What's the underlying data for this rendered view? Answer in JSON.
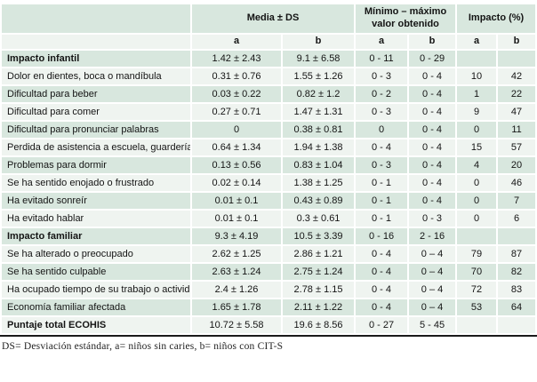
{
  "table": {
    "col_groups": [
      {
        "label": "Media ± DS"
      },
      {
        "label": "Mínimo – máximo valor obtenido"
      },
      {
        "label": "Impacto (%)"
      }
    ],
    "subheaders": [
      "a",
      "b",
      "a",
      "b",
      "a",
      "b"
    ],
    "rows": [
      {
        "label": "Impacto infantil",
        "bold": true,
        "cells": [
          "1.42 ± 2.43",
          "9.1 ± 6.58",
          "0 - 11",
          "0 - 29",
          "",
          ""
        ]
      },
      {
        "label": "Dolor en dientes, boca o mandíbula",
        "bold": false,
        "cells": [
          "0.31 ± 0.76",
          "1.55 ± 1.26",
          "0 - 3",
          "0 - 4",
          "10",
          "42"
        ]
      },
      {
        "label": "Dificultad para beber",
        "bold": false,
        "cells": [
          "0.03 ± 0.22",
          "0.82 ± 1.2",
          "0 - 2",
          "0 - 4",
          "1",
          "22"
        ]
      },
      {
        "label": "Dificultad para comer",
        "bold": false,
        "cells": [
          "0.27 ± 0.71",
          "1.47 ± 1.31",
          "0 - 3",
          "0 - 4",
          "9",
          "47"
        ]
      },
      {
        "label": "Dificultad para pronunciar palabras",
        "bold": false,
        "cells": [
          "0",
          "0.38 ± 0.81",
          "0",
          "0 - 4",
          "0",
          "11"
        ]
      },
      {
        "label": "Perdida de asistencia a escuela, guardería",
        "bold": false,
        "cells": [
          "0.64 ± 1.34",
          "1.94 ± 1.38",
          "0 - 4",
          "0 - 4",
          "15",
          "57"
        ]
      },
      {
        "label": "Problemas para dormir",
        "bold": false,
        "cells": [
          "0.13 ± 0.56",
          "0.83 ± 1.04",
          "0 - 3",
          "0 - 4",
          "4",
          "20"
        ]
      },
      {
        "label": "Se ha sentido enojado o frustrado",
        "bold": false,
        "cells": [
          "0.02 ± 0.14",
          "1.38 ± 1.25",
          "0 - 1",
          "0 - 4",
          "0",
          "46"
        ]
      },
      {
        "label": "Ha evitado sonreír",
        "bold": false,
        "cells": [
          "0.01 ± 0.1",
          "0.43 ± 0.89",
          "0 - 1",
          "0 - 4",
          "0",
          "7"
        ]
      },
      {
        "label": "Ha evitado hablar",
        "bold": false,
        "cells": [
          "0.01 ± 0.1",
          "0.3 ± 0.61",
          "0 - 1",
          "0 - 3",
          "0",
          "6"
        ]
      },
      {
        "label": "Impacto familiar",
        "bold": true,
        "cells": [
          "9.3 ± 4.19",
          "10.5 ± 3.39",
          "0 - 16",
          "2 - 16",
          "",
          ""
        ]
      },
      {
        "label": "Se ha alterado o preocupado",
        "bold": false,
        "cells": [
          "2.62 ± 1.25",
          "2.86 ± 1.21",
          "0 - 4",
          "0 – 4",
          "79",
          "87"
        ]
      },
      {
        "label": "Se ha sentido culpable",
        "bold": false,
        "cells": [
          "2.63 ± 1.24",
          "2.75 ± 1.24",
          "0 - 4",
          "0 – 4",
          "70",
          "82"
        ]
      },
      {
        "label": "Ha ocupado tiempo de su trabajo o actividad",
        "bold": false,
        "cells": [
          "2.4 ± 1.26",
          "2.78 ± 1.15",
          "0 - 4",
          "0 – 4",
          "72",
          "83"
        ]
      },
      {
        "label": "Economía familiar afectada",
        "bold": false,
        "cells": [
          "1.65 ± 1.78",
          "2.11 ± 1.22",
          "0 - 4",
          "0 – 4",
          "53",
          "64"
        ]
      },
      {
        "label": "Puntaje total ECOHIS",
        "bold": true,
        "cells": [
          "10.72 ± 5.58",
          "19.6 ± 8.56",
          "0 - 27",
          "5 - 45",
          "",
          ""
        ]
      }
    ]
  },
  "footnote": "DS= Desviación estándar, a= niños sin caries, b= niños con CIT-S",
  "colors": {
    "row_green": "#d8e7de",
    "row_light": "#eff4f0",
    "text": "#141414",
    "rule": "#1a1a1a"
  }
}
